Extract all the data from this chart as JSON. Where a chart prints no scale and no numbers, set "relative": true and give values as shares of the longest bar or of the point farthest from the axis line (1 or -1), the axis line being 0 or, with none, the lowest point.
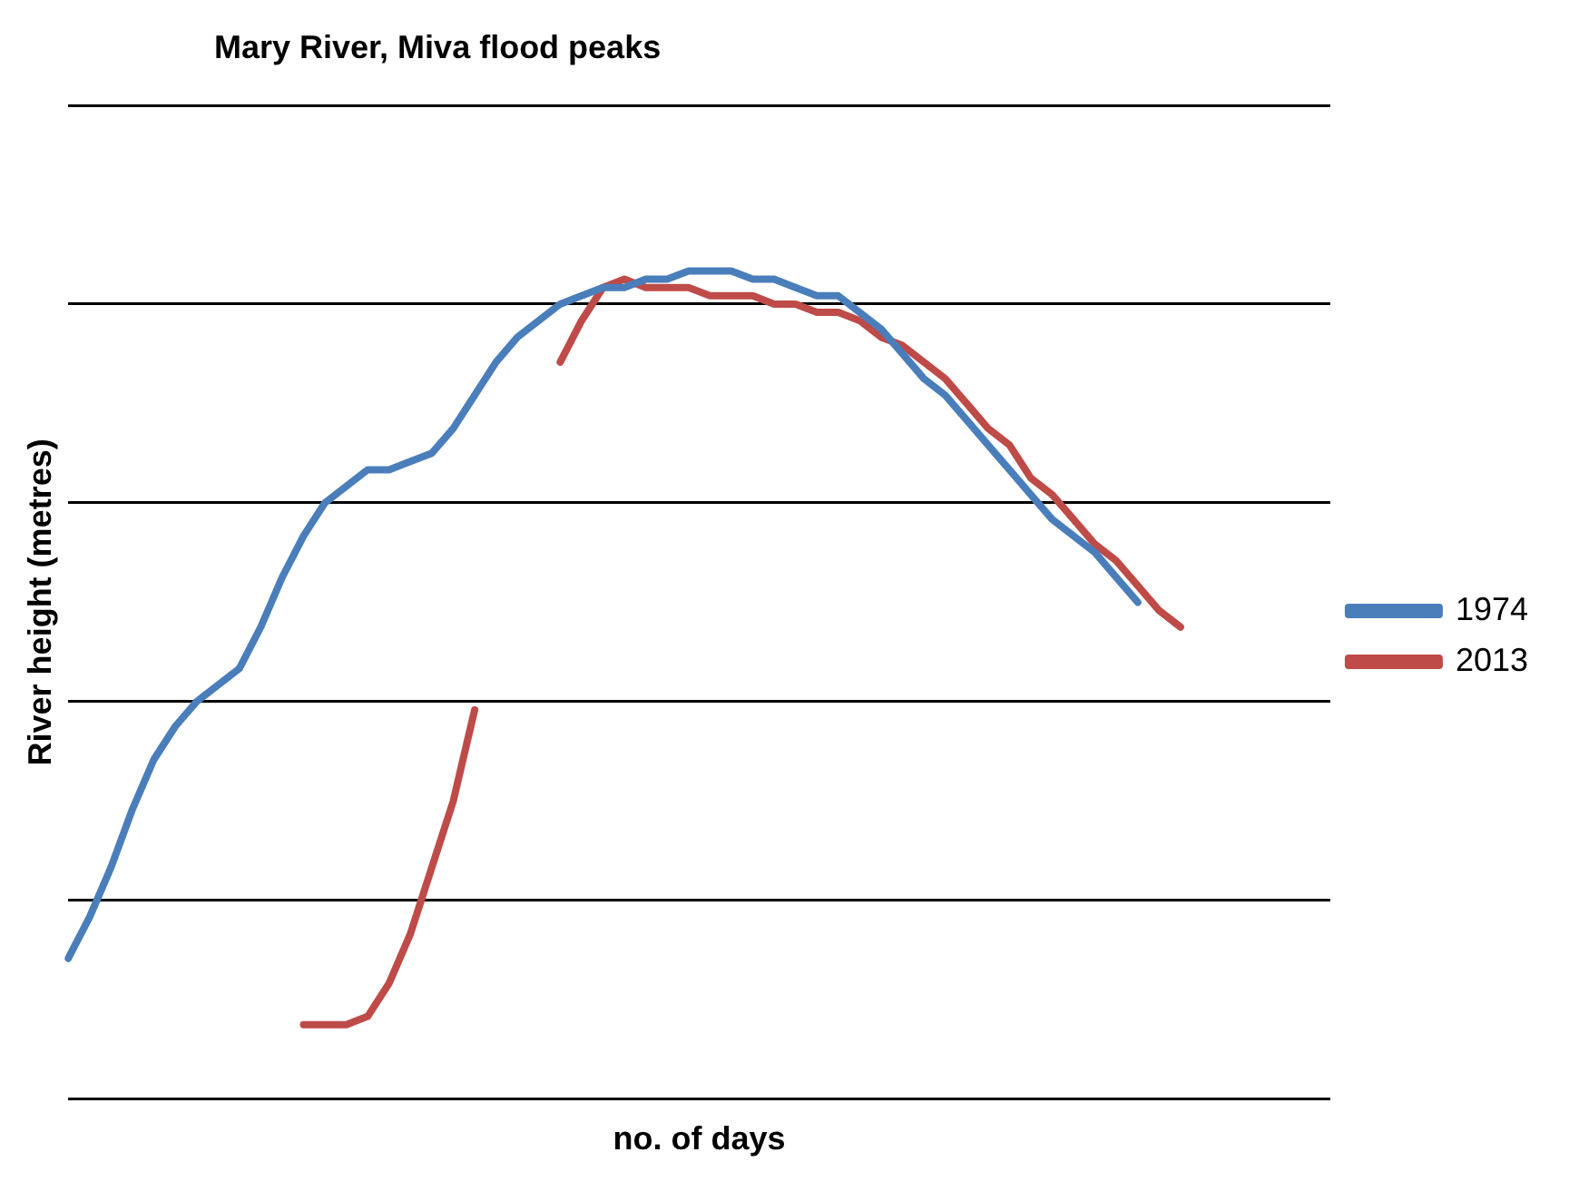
{
  "chart_data": {
    "type": "line",
    "title": "Mary River, Miva flood peaks",
    "xlabel": "no. of days",
    "ylabel": "River height (metres)",
    "relative": true,
    "grid": "y",
    "legend": "right",
    "marker": "none",
    "line_style": "solid",
    "categories": [
      null,
      null,
      null,
      null,
      null,
      null,
      null,
      null,
      null,
      null,
      null,
      null,
      null,
      null,
      null,
      null,
      null,
      null,
      null,
      null,
      null,
      null,
      null,
      null,
      null,
      null,
      null,
      null,
      null,
      null,
      null,
      null,
      null,
      null,
      null,
      null,
      null,
      null,
      null,
      null,
      null,
      null,
      null,
      null,
      null,
      null,
      null,
      null,
      null,
      null,
      null,
      null,
      null,
      null,
      null,
      null,
      null,
      null,
      null,
      null
    ],
    "series": [
      {
        "name": "1974",
        "color": "#4a7ebb",
        "values": [
          0.17,
          0.22,
          0.28,
          0.35,
          0.41,
          0.45,
          0.48,
          0.5,
          0.52,
          0.57,
          0.63,
          0.68,
          0.72,
          0.74,
          0.76,
          0.76,
          0.77,
          0.78,
          0.81,
          0.85,
          0.89,
          0.92,
          0.94,
          0.96,
          0.97,
          0.98,
          0.98,
          0.99,
          0.99,
          1.0,
          1.0,
          1.0,
          0.99,
          0.99,
          0.98,
          0.97,
          0.97,
          0.95,
          0.93,
          0.9,
          0.87,
          0.85,
          0.82,
          0.79,
          0.76,
          0.73,
          0.7,
          0.68,
          0.66,
          0.63,
          0.6,
          null,
          null,
          null,
          null,
          null,
          null,
          null,
          null,
          null
        ]
      },
      {
        "name": "2013",
        "color": "#be4b48",
        "values": [
          null,
          null,
          null,
          null,
          null,
          null,
          null,
          null,
          null,
          null,
          null,
          0.09,
          0.09,
          0.09,
          0.1,
          0.14,
          0.2,
          0.28,
          0.36,
          0.47,
          null,
          null,
          null,
          0.89,
          0.94,
          0.98,
          0.99,
          0.98,
          0.98,
          0.98,
          0.97,
          0.97,
          0.97,
          0.96,
          0.96,
          0.95,
          0.95,
          0.94,
          0.92,
          0.91,
          0.89,
          0.87,
          0.84,
          0.81,
          0.79,
          0.75,
          0.73,
          0.7,
          0.67,
          0.65,
          0.62,
          0.59,
          0.57,
          null,
          null,
          null,
          null,
          null,
          null,
          null
        ]
      }
    ]
  }
}
